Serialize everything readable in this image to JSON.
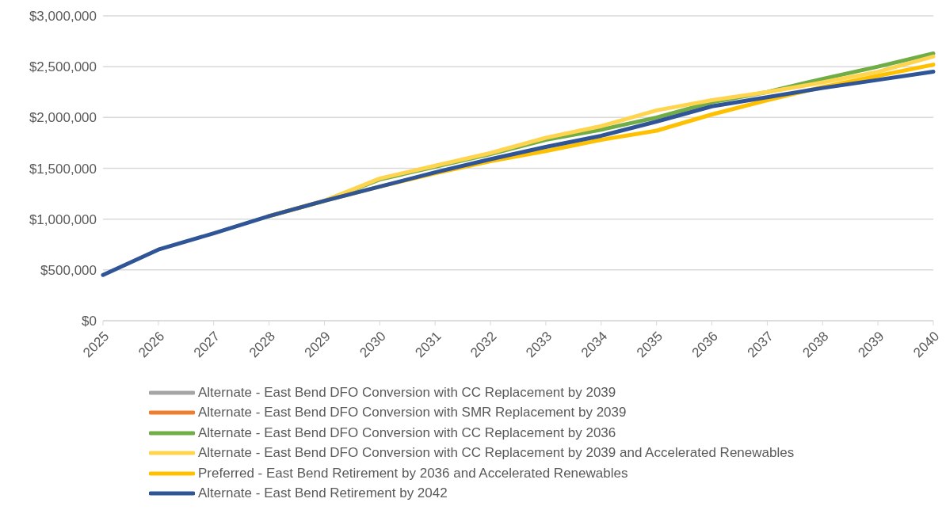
{
  "chart_data": {
    "type": "line",
    "categories": [
      "2025",
      "2026",
      "2027",
      "2028",
      "2029",
      "2030",
      "2031",
      "2032",
      "2033",
      "2034",
      "2035",
      "2036",
      "2037",
      "2038",
      "2039",
      "2040"
    ],
    "series": [
      {
        "name": "Alternate - East Bend DFO Conversion with CC Replacement by 2039",
        "color": "#a5a5a5",
        "values": [
          null,
          null,
          null,
          null,
          null,
          null,
          null,
          null,
          null,
          null,
          null,
          null,
          null,
          null,
          null,
          null
        ]
      },
      {
        "name": "Alternate - East Bend DFO Conversion with SMR Replacement by 2039",
        "color": "#ed7d31",
        "values": [
          null,
          null,
          null,
          null,
          null,
          null,
          null,
          null,
          null,
          null,
          null,
          null,
          null,
          null,
          null,
          null
        ]
      },
      {
        "name": "Alternate - East Bend DFO Conversion with CC Replacement by 2036",
        "color": "#70ad47",
        "values": [
          null,
          null,
          null,
          1030000,
          1180000,
          1390000,
          1515000,
          1640000,
          1780000,
          1880000,
          2000000,
          2150000,
          2250000,
          2380000,
          2500000,
          2630000
        ]
      },
      {
        "name": "Alternate - East Bend DFO Conversion with CC Replacement by 2039 and Accelerated Renewables",
        "color": "#ffd54f",
        "values": [
          null,
          null,
          null,
          1030000,
          1180000,
          1400000,
          1525000,
          1650000,
          1800000,
          1915000,
          2070000,
          2170000,
          2250000,
          2345000,
          2450000,
          2600000
        ]
      },
      {
        "name": "Preferred - East Bend Retirement by 2036 and Accelerated Renewables",
        "color": "#ffc000",
        "values": [
          null,
          null,
          null,
          1030000,
          1180000,
          1320000,
          1450000,
          1570000,
          1670000,
          1780000,
          1870000,
          2030000,
          2170000,
          2300000,
          2410000,
          2520000
        ]
      },
      {
        "name": "Alternate - East Bend Retirement by 2042",
        "color": "#2f5597",
        "values": [
          450000,
          700000,
          860000,
          1030000,
          1180000,
          1320000,
          1460000,
          1590000,
          1710000,
          1820000,
          1960000,
          2110000,
          2200000,
          2290000,
          2370000,
          2450000
        ]
      }
    ],
    "ylim": [
      0,
      3000000
    ],
    "yticks": [
      {
        "value": 0,
        "label": "$0"
      },
      {
        "value": 500000,
        "label": "$500,000"
      },
      {
        "value": 1000000,
        "label": "$1,000,000"
      },
      {
        "value": 1500000,
        "label": "$1,500,000"
      },
      {
        "value": 2000000,
        "label": "$2,000,000"
      },
      {
        "value": 2500000,
        "label": "$2,500,000"
      },
      {
        "value": 3000000,
        "label": "$3,000,000"
      }
    ],
    "grid": "y",
    "legend": "bottom",
    "marker": "none",
    "line_style": "solid"
  }
}
